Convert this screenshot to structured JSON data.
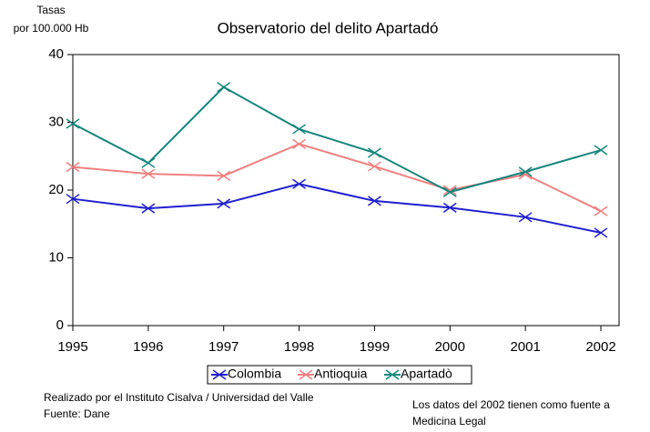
{
  "chart_data": {
    "type": "line",
    "title": "Observatorio del delito Apartadó",
    "y_label": [
      "Tasas",
      "por 100.000 Hb"
    ],
    "x": [
      1995,
      1996,
      1997,
      1998,
      1999,
      2000,
      2001,
      2002
    ],
    "series": [
      {
        "name": "Colombia",
        "color": "#1f1fd0",
        "values": [
          18.7,
          17.3,
          18.0,
          20.9,
          18.4,
          17.4,
          16.0,
          13.7
        ]
      },
      {
        "name": "Antioquia",
        "color": "#f08080",
        "values": [
          23.4,
          22.4,
          22.1,
          26.8,
          23.5,
          20.0,
          22.3,
          16.9
        ]
      },
      {
        "name": "Apartadò",
        "color": "#14857a",
        "values": [
          29.8,
          24.0,
          35.2,
          29.0,
          25.5,
          19.7,
          22.7,
          25.9
        ]
      }
    ],
    "xlim": [
      1995,
      2002
    ],
    "xticks": [
      1995,
      1996,
      1997,
      1998,
      1999,
      2000,
      2001,
      2002
    ],
    "ylim": [
      0,
      40
    ],
    "yticks": [
      0,
      10,
      20,
      30,
      40
    ],
    "notes_left": [
      "Realizado por el Instituto Cisalva / Universidad del Valle",
      "Fuente: Dane"
    ],
    "notes_right": [
      "Los datos del 2002 tienen como fuente a",
      "Medicina Legal"
    ]
  }
}
